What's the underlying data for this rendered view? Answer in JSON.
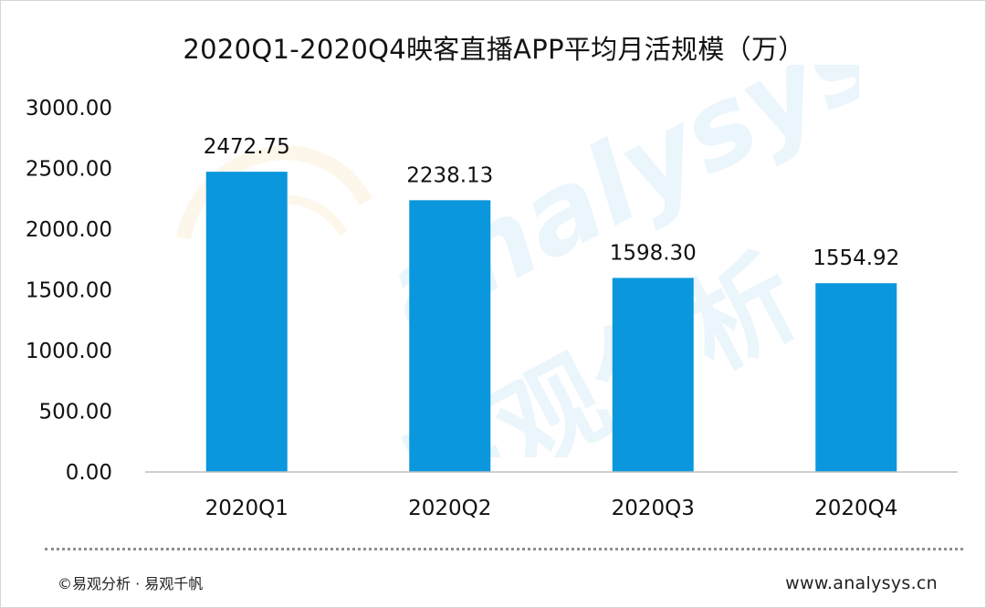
{
  "chart_data": {
    "type": "bar",
    "title": "2020Q1-2020Q4映客直播APP平均月活规模（万）",
    "categories": [
      "2020Q1",
      "2020Q2",
      "2020Q3",
      "2020Q4"
    ],
    "values": [
      2472.75,
      2238.13,
      1598.3,
      1554.92
    ],
    "value_labels": [
      "2472.75",
      "2238.13",
      "1598.30",
      "1554.92"
    ],
    "ylim": [
      0,
      3000
    ],
    "yticks": [
      "0.00",
      "500.00",
      "1000.00",
      "1500.00",
      "2000.00",
      "2500.00",
      "3000.00"
    ],
    "xlabel": "",
    "ylabel": "",
    "grid": false,
    "legend": "none",
    "bar_color": "#0b97dd"
  },
  "watermark": {
    "latin": "analysys",
    "cjk": "易观分析",
    "blue": "#7fc4ee",
    "orange": "#f7c98b"
  },
  "footer": {
    "copyright": "©易观分析 · 易观千帆",
    "website": "www.analysys.cn"
  }
}
